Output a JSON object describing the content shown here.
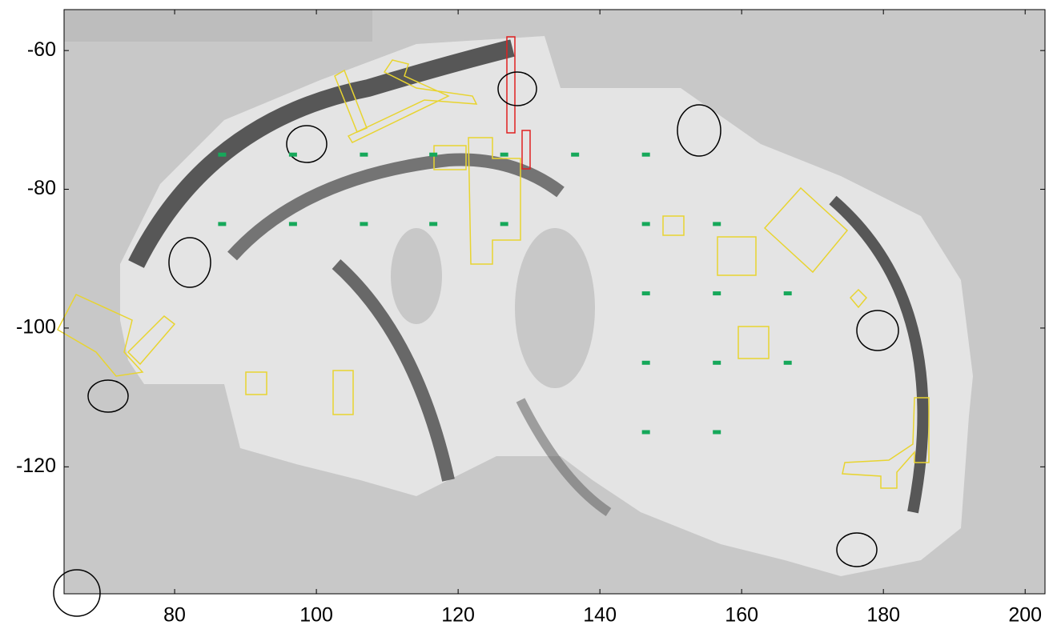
{
  "chart_data": {
    "type": "scatter",
    "xlim": [
      64.4,
      202.8
    ],
    "ylim": [
      -138.3,
      -54.1
    ],
    "xticks": [
      80,
      100,
      120,
      140,
      160,
      180,
      200
    ],
    "yticks": [
      -60,
      -80,
      -100,
      -120
    ],
    "series": [
      {
        "color": "#16a85a",
        "x": [
          86.7,
          96.7,
          106.7,
          116.5,
          126.5,
          136.5,
          146.5,
          86.7,
          96.7,
          106.7,
          116.5,
          126.5,
          146.5,
          156.5,
          146.5,
          156.5,
          166.5,
          146.5,
          156.5,
          166.5,
          146.5,
          156.5
        ],
        "values": [
          -75,
          -75,
          -75,
          -75,
          -75,
          -75,
          -75,
          -85,
          -85,
          -85,
          -85,
          -85,
          -85,
          -85,
          -95,
          -95,
          -95,
          -105,
          -105,
          -105,
          -115,
          -115
        ]
      }
    ]
  }
}
